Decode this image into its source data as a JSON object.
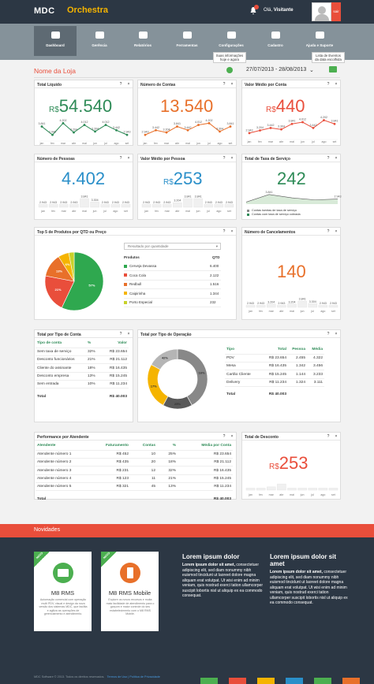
{
  "header": {
    "logo": "MDC",
    "product": "Orchestra",
    "greeting_prefix": "Olá,",
    "greeting_name": "Visitante",
    "logout": "sair"
  },
  "nav": {
    "items": [
      {
        "label": "Dashboard",
        "icon": "dashboard-icon"
      },
      {
        "label": "Gerência",
        "icon": "briefcase-icon"
      },
      {
        "label": "Relatórios",
        "icon": "report-icon"
      },
      {
        "label": "Ferramentas",
        "icon": "tools-icon"
      },
      {
        "label": "Configurações",
        "icon": "gear-icon"
      },
      {
        "label": "Cadastro",
        "icon": "pen-icon"
      },
      {
        "label": "Ajuda e Suporte",
        "icon": "users-icon"
      }
    ]
  },
  "tooltips": {
    "update": "Suas informações\nhoje e agora",
    "events": "Lista de Eventos\nda data escolhida"
  },
  "toolbar": {
    "store_name": "Nome da Loja",
    "date_range": "27/07/2013 - 28/08/2013",
    "chevron": "⌄"
  },
  "cards": {
    "total_liquido": {
      "title": "Total Líquido",
      "currency": "R$",
      "value": "54.540",
      "color": "#2e8b57",
      "chart_data": {
        "type": "line",
        "x": [
          "jan",
          "fev",
          "mar",
          "abr",
          "mai",
          "jun",
          "jul",
          "ago",
          "set"
        ],
        "values": [
          3.841,
          2.943,
          4.202,
          3.204,
          4.012,
          3.304,
          4.012,
          3.442,
          2.943
        ],
        "labels": [
          "3.841",
          "2.943",
          "4.202",
          "3.204",
          "4.012",
          "3.304",
          "4.012",
          "3.442",
          "2.943"
        ]
      }
    },
    "numero_contas": {
      "title": "Número de Contas",
      "currency": "",
      "value": "13.540",
      "color": "#e8702a",
      "chart_data": {
        "type": "line",
        "x": [
          "jan",
          "fev",
          "mar",
          "abr",
          "mai",
          "jun",
          "jul",
          "ago",
          "set"
        ],
        "values": [
          2.943,
          3.442,
          3.204,
          3.841,
          3.442,
          4.012,
          4.202,
          3.304,
          3.841
        ],
        "labels": [
          "2.943",
          "3.442",
          "3.204",
          "3.841",
          "3.442",
          "4.012",
          "4.202",
          "3.304",
          "3.841"
        ]
      }
    },
    "valor_medio_conta": {
      "title": "Valor Médio por Conta",
      "currency": "R$",
      "value": "440",
      "color": "#e94e3b",
      "chart_data": {
        "type": "line",
        "x": [
          "jan",
          "fev",
          "mar",
          "abr",
          "mai",
          "jun",
          "jul",
          "ago",
          "set"
        ],
        "values": [
          2.943,
          3.204,
          3.442,
          3.304,
          3.841,
          4.012,
          3.442,
          4.202,
          3.841
        ],
        "labels": [
          "2.943",
          "3.204",
          "3.442",
          "3.304",
          "3.841",
          "4.012",
          "3.442",
          "4.202",
          "3.841"
        ]
      }
    },
    "numero_pessoas": {
      "title": "Número de Pessoas",
      "currency": "",
      "value": "4.402",
      "color": "#2a8fc9",
      "chart_data": {
        "type": "bar",
        "x": [
          "jan",
          "fev",
          "mar",
          "abr",
          "mai",
          "jun",
          "jul",
          "ago",
          "set"
        ],
        "values": [
          2.943,
          2.943,
          2.943,
          2.943,
          3.841,
          3.304,
          2.943,
          2.943,
          2.943
        ],
        "labels": [
          "2.943",
          "2.943",
          "2.943",
          "2.943",
          "3.841",
          "3.304",
          "2.943",
          "2.943",
          "2.943"
        ]
      }
    },
    "valor_medio_pessoa": {
      "title": "Valor Médio por Pessoa",
      "currency": "R$",
      "value": "253",
      "color": "#2a8fc9",
      "chart_data": {
        "type": "bar",
        "x": [
          "jan",
          "fev",
          "mar",
          "abr",
          "mai",
          "jun",
          "jul",
          "ago",
          "set"
        ],
        "values": [
          2.943,
          2.943,
          2.943,
          3.204,
          3.841,
          3.841,
          2.943,
          2.943,
          2.943
        ],
        "labels": [
          "2.943",
          "2.943",
          "2.943",
          "3.204",
          "3.841",
          "3.841",
          "2.943",
          "2.943",
          "2.943"
        ]
      }
    },
    "taxa_servico": {
      "title": "Total de Taxa de Serviço",
      "currency": "",
      "value": "242",
      "color": "#2e8b57",
      "chart_data": {
        "type": "line",
        "values": [
          2.943,
          3.841,
          3.442,
          3.204,
          3.304
        ],
        "labels": [
          "",
          "3.841",
          "",
          "",
          "2.943"
        ],
        "legend": [
          "Contas isentas de taxa de serviço",
          "Contas com taxa de serviço cobrada"
        ]
      }
    },
    "top5": {
      "title": "Top 5 de Produtos por QTD ou Preço",
      "select": "Resultado por quantidade",
      "col_product": "Produtos",
      "col_qty": "QTD",
      "chart_data": {
        "type": "pie",
        "items": [
          {
            "name": "Cerveja Devassa",
            "qty": "6.400",
            "value": 57,
            "color": "#2fa84f"
          },
          {
            "name": "Coca Cola",
            "qty": "2.122",
            "value": 21,
            "color": "#e94e3b"
          },
          {
            "name": "Redbull",
            "qty": "1.516",
            "value": 13,
            "color": "#e8702a"
          },
          {
            "name": "Caipirinha",
            "qty": "1.344",
            "value": 6,
            "color": "#f5b400"
          },
          {
            "name": "Porto Especial",
            "qty": "232",
            "value": 3,
            "color": "#c8d22a"
          }
        ],
        "labels": [
          "57%",
          "21%",
          "13%",
          "6%"
        ]
      }
    },
    "cancelamentos": {
      "title": "Número de Cancelamentos",
      "currency": "",
      "value": "140",
      "color": "#e8702a",
      "chart_data": {
        "type": "bar",
        "x": [
          "jan",
          "fev",
          "mar",
          "abr",
          "mai",
          "jun",
          "jul",
          "ago",
          "set"
        ],
        "values": [
          2.943,
          2.943,
          3.204,
          2.943,
          3.204,
          3.841,
          3.304,
          2.943,
          2.943
        ],
        "labels": [
          "2.943",
          "2.943",
          "3.204",
          "2.943",
          "3.204",
          "3.841",
          "3.304",
          "2.943",
          "2.943"
        ]
      }
    },
    "tipo_conta": {
      "title": "Total por Tipo de Conta",
      "headers": [
        "Tipo de conta",
        "%",
        "Valor"
      ],
      "rows": [
        [
          "Sem taxa de serviço",
          "32%",
          "R$ 23.654"
        ],
        [
          "Desconto funcionários",
          "21%",
          "R$ 21.112"
        ],
        [
          "Cliente do assinante",
          "18%",
          "R$ 16.435"
        ],
        [
          "Desconto empresa",
          "13%",
          "R$ 15.245"
        ],
        [
          "Sem entrada",
          "10%",
          "R$ 11.234"
        ]
      ],
      "total": [
        "Total",
        "",
        "R$ 40.003"
      ]
    },
    "tipo_operacao": {
      "title": "Total por Tipo de Operação",
      "headers": [
        "Tipo",
        "Total",
        "Pessoa",
        "Média"
      ],
      "rows": [
        [
          "PDV",
          "R$ 23.654",
          "2.455",
          "4.322"
        ],
        [
          "Mesa",
          "R$ 16.435",
          "1.342",
          "3.456"
        ],
        [
          "Cartão Cliente",
          "R$ 15.245",
          "1.144",
          "3.233"
        ],
        [
          "Delivery",
          "R$ 11.234",
          "1.324",
          "3.111"
        ]
      ],
      "total": [
        "Total",
        "R$ 40.003",
        "",
        ""
      ],
      "chart_data": {
        "type": "pie",
        "items": [
          {
            "name": "PDV",
            "value": 42,
            "color": "#888888"
          },
          {
            "name": "Mesa",
            "value": 16,
            "color": "#5a5a5a"
          },
          {
            "name": "Cartão Cliente",
            "value": 25,
            "color": "#f5b400"
          },
          {
            "name": "Delivery",
            "value": 17,
            "color": "#b5b5b5"
          }
        ],
        "labels": [
          "16%",
          "25%",
          "17%",
          "42%"
        ]
      }
    },
    "atendente": {
      "title": "Performance por Atendente",
      "headers": [
        "Atendente",
        "Faturamento",
        "Contas",
        "%",
        "Média por Conta"
      ],
      "rows": [
        [
          "Atendente número 1",
          "R$ 452",
          "10",
          "25%",
          "R$ 23.654"
        ],
        [
          "Atendente número 2",
          "R$ 435",
          "20",
          "18%",
          "R$ 21.112"
        ],
        [
          "Atendente número 3",
          "R$ 231",
          "12",
          "32%",
          "R$ 16.435"
        ],
        [
          "Atendente número 4",
          "R$ 123",
          "11",
          "21%",
          "R$ 15.245"
        ],
        [
          "Atendente número 5",
          "R$ 321",
          "45",
          "13%",
          "R$ 11.234"
        ]
      ],
      "total": [
        "Total",
        "",
        "",
        "",
        "R$ 40.003"
      ]
    },
    "desconto": {
      "title": "Total de Desconto",
      "currency": "R$",
      "value": "253",
      "color": "#e94e3b",
      "chart_data": {
        "type": "bar",
        "x": [
          "jan",
          "fev",
          "mar",
          "abr",
          "mai",
          "jun",
          "jul",
          "ago",
          "set"
        ],
        "values": [
          2.943,
          2.943,
          3.204,
          3.841,
          2.943,
          2.943,
          2.943,
          2.943,
          2.943
        ]
      }
    }
  },
  "novidades": {
    "title": "Novidades",
    "badge": "NOVO",
    "products": [
      {
        "name": "M8 RMS",
        "icon": "tablet-icon",
        "color": "#4caf50",
        "desc": "Automação comercial com operação multi PDV, visual e design da nova versão dos sistemas MDC, que facilita e agiliza as operações de gerenciamento e atendimento."
      },
      {
        "name": "M8 RMS Mobile",
        "icon": "phone-icon",
        "color": "#e8702a",
        "desc": "Explore os novos recursos e muita mais facilidade de atendimento para o garçom e maior controle do seu estabelecimento com o M8 RMS Mobile."
      }
    ],
    "articles": [
      {
        "title": "Lorem ipsum dolor",
        "intro": "Lorem ipsum dolor sit amet,",
        "body": "consectetuer adipiscing elit, sed diam nonummy nibh euismod tincidunt ut laoreet dolore magna aliquam erat volutpat. Ut wisi enim ad minim veniam, quis nostrud exerci tation ullamcorper suscipit lobortis nisl ut aliquip ex ea commodo consequat."
      },
      {
        "title": "Lorem ipsum dolor sit amet",
        "intro": "Lorem ipsum dolor sit amet,",
        "body": "consectetuer adipiscing elit, sed diam nonummy nibh euismod tincidunt ut laoreet dolore magna aliquam erat volutpat. Ut wisi enim ad minim veniam, quis nostrud exerci tation ullamcorper suscipit lobortis nisl ut aliquip ex ea commodo consequat."
      }
    ]
  },
  "footer": {
    "copyright": "MDC Software © 2013. Todos os direitos reservados.",
    "links": "Termos de Uso | Política de Privacidade"
  },
  "colors": {
    "header": "#2c3744",
    "nav": "#85929a",
    "accent": "#e94e3b",
    "green": "#2e8b57",
    "strip": [
      "#4caf50",
      "#e94e3b",
      "#f5b400",
      "#2a8fc9",
      "#4caf50",
      "#e8702a"
    ]
  }
}
